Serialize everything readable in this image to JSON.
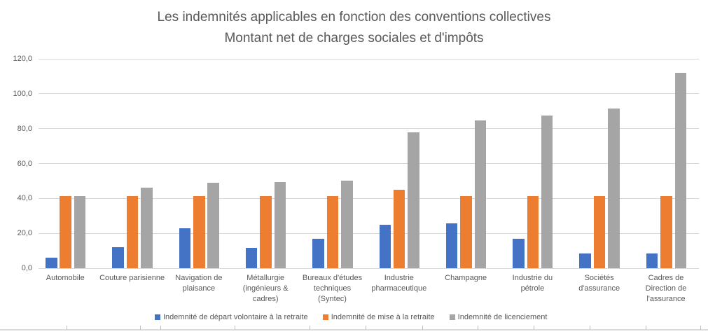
{
  "title": {
    "line1": "Les indemnités applicables en fonction des conventions collectives",
    "line2": "Montant net de charges sociales et d'impôts"
  },
  "chart_data": {
    "type": "bar",
    "title": "Les indemnités applicables en fonction des conventions collectives — Montant net de charges sociales et d'impôts",
    "xlabel": "",
    "ylabel": "",
    "ylim": [
      0,
      120
    ],
    "grid": true,
    "legend_position": "bottom",
    "y_ticks": [
      {
        "value": 0,
        "label": "0,0"
      },
      {
        "value": 20,
        "label": "20,0"
      },
      {
        "value": 40,
        "label": "40,0"
      },
      {
        "value": 60,
        "label": "60,0"
      },
      {
        "value": 80,
        "label": "80,0"
      },
      {
        "value": 100,
        "label": "100,0"
      },
      {
        "value": 120,
        "label": "120,0"
      }
    ],
    "categories": [
      "Automobile",
      "Couture parisienne",
      "Navigation de plaisance",
      "Métallurgie (ingénieurs & cadres)",
      "Bureaux d'études techniques (Syntec)",
      "Industrie pharmaceutique",
      "Champagne",
      "Industrie du pétrole",
      "Sociétés d'assurance",
      "Cadres de Direction de l'assurance"
    ],
    "category_label_lines": [
      [
        "Automobile"
      ],
      [
        "Couture parisienne"
      ],
      [
        "Navigation de",
        "plaisance"
      ],
      [
        "Métallurgie",
        "(ingénieurs &",
        "cadres)"
      ],
      [
        "Bureaux d'études",
        "techniques",
        "(Syntec)"
      ],
      [
        "Industrie",
        "pharmaceutique"
      ],
      [
        "Champagne"
      ],
      [
        "Industrie du",
        "pétrole"
      ],
      [
        "Sociétés",
        "d'assurance"
      ],
      [
        "Cadres de",
        "Direction de",
        "l'assurance"
      ]
    ],
    "series": [
      {
        "name": "Indemnité de départ volontaire à la retraite",
        "color": "#4472C4",
        "values": [
          6,
          12,
          23,
          11.5,
          17,
          25,
          25.5,
          17,
          8.5,
          8.5
        ]
      },
      {
        "name": "Indemnité de mise à la retraite",
        "color": "#ED7D31",
        "values": [
          41.5,
          41.5,
          41.5,
          41.5,
          41.5,
          45,
          41.5,
          41.5,
          41.5,
          41.5
        ]
      },
      {
        "name": "Indemnité de licenciement",
        "color": "#A5A5A5",
        "values": [
          41.5,
          46,
          49,
          49.5,
          50,
          78,
          84.5,
          87.5,
          91.5,
          112
        ]
      }
    ]
  },
  "colors": {
    "text": "#595959",
    "gridline": "#D9D9D9",
    "background": "#FFFFFF",
    "ruler_line": "#D9D9D9",
    "ruler_tick": "#BFBFBF"
  },
  "bottom_ruler": {
    "tick_positions": [
      95,
      200,
      229,
      335,
      442,
      522,
      603,
      682,
      762,
      842,
      922,
      1000
    ]
  }
}
